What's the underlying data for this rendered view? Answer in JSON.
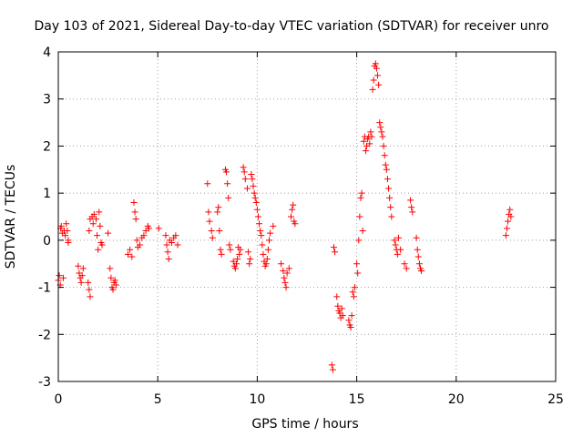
{
  "chart_data": {
    "type": "scatter",
    "title": "Day 103 of 2021, Sidereal Day-to-day VTEC variation (SDTVAR) for receiver unro",
    "xlabel": "GPS time / hours",
    "ylabel": "SDTVAR / TECUs",
    "xlim": [
      0,
      25
    ],
    "ylim": [
      -3,
      4
    ],
    "xticks": [
      0,
      5,
      10,
      15,
      20,
      25
    ],
    "yticks": [
      -3,
      -2,
      -1,
      0,
      1,
      2,
      3,
      4
    ],
    "xtick_labels": [
      "0",
      "5",
      "10",
      "15",
      "20",
      "25"
    ],
    "ytick_labels": [
      "-3",
      "-2",
      "-1",
      "0",
      "1",
      "2",
      "3",
      "4"
    ],
    "grid": true,
    "marker": "+",
    "color": "#ff0000",
    "series": [
      {
        "name": "SDTVAR",
        "points": [
          [
            0.0,
            -0.85
          ],
          [
            0.05,
            -0.75
          ],
          [
            0.1,
            -0.95
          ],
          [
            0.12,
            0.25
          ],
          [
            0.15,
            0.3
          ],
          [
            0.2,
            0.15
          ],
          [
            0.25,
            -0.8
          ],
          [
            0.3,
            0.2
          ],
          [
            0.35,
            0.1
          ],
          [
            0.4,
            0.35
          ],
          [
            0.45,
            0.2
          ],
          [
            0.5,
            0.0
          ],
          [
            0.5,
            -0.05
          ],
          [
            1.0,
            -0.55
          ],
          [
            1.05,
            -0.7
          ],
          [
            1.1,
            -0.8
          ],
          [
            1.15,
            -0.9
          ],
          [
            1.2,
            -0.75
          ],
          [
            1.25,
            -0.6
          ],
          [
            1.5,
            -0.9
          ],
          [
            1.55,
            -1.05
          ],
          [
            1.6,
            -1.2
          ],
          [
            1.55,
            0.2
          ],
          [
            1.6,
            0.45
          ],
          [
            1.7,
            0.5
          ],
          [
            1.75,
            0.35
          ],
          [
            1.8,
            0.55
          ],
          [
            1.9,
            0.45
          ],
          [
            1.95,
            0.1
          ],
          [
            2.0,
            -0.2
          ],
          [
            2.05,
            0.6
          ],
          [
            2.1,
            0.3
          ],
          [
            2.15,
            -0.05
          ],
          [
            2.2,
            -0.1
          ],
          [
            2.5,
            0.15
          ],
          [
            2.6,
            -0.6
          ],
          [
            2.65,
            -0.8
          ],
          [
            2.7,
            -1.0
          ],
          [
            2.75,
            -1.05
          ],
          [
            2.8,
            -0.9
          ],
          [
            2.85,
            -0.85
          ],
          [
            2.9,
            -0.95
          ],
          [
            3.5,
            -0.3
          ],
          [
            3.6,
            -0.2
          ],
          [
            3.7,
            -0.35
          ],
          [
            3.8,
            0.8
          ],
          [
            3.85,
            0.6
          ],
          [
            3.9,
            0.45
          ],
          [
            3.95,
            0.0
          ],
          [
            4.0,
            -0.15
          ],
          [
            4.1,
            -0.1
          ],
          [
            4.2,
            0.05
          ],
          [
            4.3,
            0.1
          ],
          [
            4.4,
            0.2
          ],
          [
            4.5,
            0.3
          ],
          [
            4.55,
            0.25
          ],
          [
            5.05,
            0.25
          ],
          [
            5.4,
            0.1
          ],
          [
            5.45,
            -0.1
          ],
          [
            5.5,
            -0.25
          ],
          [
            5.55,
            -0.4
          ],
          [
            5.6,
            0.0
          ],
          [
            5.7,
            -0.05
          ],
          [
            5.8,
            0.05
          ],
          [
            5.9,
            0.1
          ],
          [
            6.0,
            -0.1
          ],
          [
            7.5,
            1.2
          ],
          [
            7.55,
            0.6
          ],
          [
            7.6,
            0.4
          ],
          [
            7.7,
            0.2
          ],
          [
            7.75,
            0.05
          ],
          [
            8.0,
            0.6
          ],
          [
            8.05,
            0.7
          ],
          [
            8.1,
            0.2
          ],
          [
            8.15,
            -0.2
          ],
          [
            8.2,
            -0.3
          ],
          [
            8.4,
            1.5
          ],
          [
            8.45,
            1.45
          ],
          [
            8.5,
            1.2
          ],
          [
            8.55,
            0.9
          ],
          [
            8.6,
            -0.1
          ],
          [
            8.65,
            -0.2
          ],
          [
            8.8,
            -0.45
          ],
          [
            8.85,
            -0.55
          ],
          [
            8.9,
            -0.6
          ],
          [
            8.95,
            -0.5
          ],
          [
            9.0,
            -0.4
          ],
          [
            9.05,
            -0.15
          ],
          [
            9.1,
            -0.3
          ],
          [
            9.15,
            -0.2
          ],
          [
            9.3,
            1.55
          ],
          [
            9.35,
            1.45
          ],
          [
            9.4,
            1.3
          ],
          [
            9.5,
            1.1
          ],
          [
            9.55,
            -0.25
          ],
          [
            9.6,
            -0.5
          ],
          [
            9.65,
            -0.4
          ],
          [
            9.7,
            1.4
          ],
          [
            9.75,
            1.3
          ],
          [
            9.8,
            1.15
          ],
          [
            9.85,
            1.0
          ],
          [
            9.9,
            0.9
          ],
          [
            9.95,
            0.8
          ],
          [
            10.0,
            0.65
          ],
          [
            10.05,
            0.5
          ],
          [
            10.1,
            0.35
          ],
          [
            10.15,
            0.2
          ],
          [
            10.2,
            0.1
          ],
          [
            10.25,
            -0.1
          ],
          [
            10.3,
            -0.3
          ],
          [
            10.35,
            -0.45
          ],
          [
            10.4,
            -0.55
          ],
          [
            10.45,
            -0.5
          ],
          [
            10.5,
            -0.4
          ],
          [
            10.55,
            -0.2
          ],
          [
            10.6,
            0.0
          ],
          [
            10.65,
            0.15
          ],
          [
            10.8,
            0.3
          ],
          [
            11.2,
            -0.5
          ],
          [
            11.3,
            -0.65
          ],
          [
            11.35,
            -0.8
          ],
          [
            11.4,
            -0.9
          ],
          [
            11.45,
            -1.0
          ],
          [
            11.5,
            -0.7
          ],
          [
            11.6,
            -0.6
          ],
          [
            11.7,
            0.5
          ],
          [
            11.75,
            0.65
          ],
          [
            11.8,
            0.75
          ],
          [
            11.85,
            0.4
          ],
          [
            11.9,
            0.35
          ],
          [
            13.75,
            -2.65
          ],
          [
            13.8,
            -2.75
          ],
          [
            13.85,
            -0.15
          ],
          [
            13.9,
            -0.25
          ],
          [
            14.0,
            -1.2
          ],
          [
            14.05,
            -1.4
          ],
          [
            14.1,
            -1.5
          ],
          [
            14.15,
            -1.55
          ],
          [
            14.2,
            -1.65
          ],
          [
            14.25,
            -1.45
          ],
          [
            14.3,
            -1.6
          ],
          [
            14.6,
            -1.7
          ],
          [
            14.65,
            -1.8
          ],
          [
            14.7,
            -1.85
          ],
          [
            14.75,
            -1.6
          ],
          [
            14.8,
            -1.1
          ],
          [
            14.85,
            -1.2
          ],
          [
            14.9,
            -1.0
          ],
          [
            15.0,
            -0.5
          ],
          [
            15.05,
            -0.7
          ],
          [
            15.1,
            0.0
          ],
          [
            15.15,
            0.5
          ],
          [
            15.2,
            0.9
          ],
          [
            15.25,
            1.0
          ],
          [
            15.3,
            0.2
          ],
          [
            15.35,
            2.1
          ],
          [
            15.4,
            2.2
          ],
          [
            15.45,
            1.9
          ],
          [
            15.5,
            2.0
          ],
          [
            15.55,
            2.15
          ],
          [
            15.6,
            2.2
          ],
          [
            15.65,
            2.05
          ],
          [
            15.7,
            2.3
          ],
          [
            15.75,
            2.2
          ],
          [
            15.8,
            3.2
          ],
          [
            15.85,
            3.4
          ],
          [
            15.9,
            3.7
          ],
          [
            15.95,
            3.75
          ],
          [
            16.0,
            3.65
          ],
          [
            16.05,
            3.5
          ],
          [
            16.1,
            3.3
          ],
          [
            16.15,
            2.5
          ],
          [
            16.2,
            2.4
          ],
          [
            16.25,
            2.3
          ],
          [
            16.3,
            2.2
          ],
          [
            16.35,
            2.0
          ],
          [
            16.4,
            1.8
          ],
          [
            16.45,
            1.6
          ],
          [
            16.5,
            1.5
          ],
          [
            16.55,
            1.3
          ],
          [
            16.6,
            1.1
          ],
          [
            16.65,
            0.9
          ],
          [
            16.7,
            0.7
          ],
          [
            16.75,
            0.5
          ],
          [
            16.9,
            0.0
          ],
          [
            16.95,
            -0.1
          ],
          [
            17.0,
            -0.2
          ],
          [
            17.05,
            -0.3
          ],
          [
            17.1,
            0.05
          ],
          [
            17.2,
            -0.2
          ],
          [
            17.4,
            -0.5
          ],
          [
            17.5,
            -0.6
          ],
          [
            17.7,
            0.85
          ],
          [
            17.75,
            0.7
          ],
          [
            17.8,
            0.6
          ],
          [
            18.0,
            0.05
          ],
          [
            18.05,
            -0.2
          ],
          [
            18.1,
            -0.35
          ],
          [
            18.15,
            -0.5
          ],
          [
            18.2,
            -0.6
          ],
          [
            18.25,
            -0.65
          ],
          [
            22.5,
            0.1
          ],
          [
            22.55,
            0.25
          ],
          [
            22.6,
            0.4
          ],
          [
            22.65,
            0.55
          ],
          [
            22.7,
            0.65
          ],
          [
            22.75,
            0.5
          ]
        ]
      }
    ]
  }
}
